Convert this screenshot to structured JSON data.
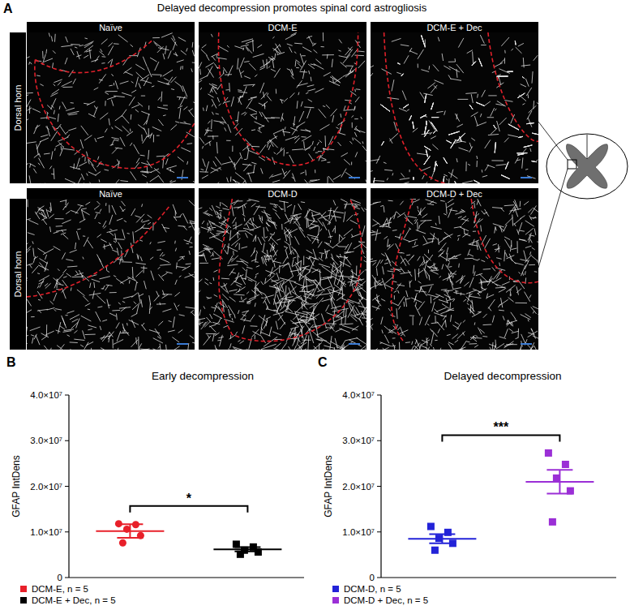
{
  "panel_labels": [
    "A",
    "B",
    "C"
  ],
  "panel_a": {
    "title": "Delayed decompression promotes spinal cord astrogliosis",
    "row_label": "Dorsal horn",
    "rows": [
      [
        "Naïve",
        "DCM-E",
        "DCM-E + Dec"
      ],
      [
        "Naïve",
        "DCM-D",
        "DCM-D + Dec"
      ]
    ]
  },
  "chart_data": [
    {
      "type": "dot",
      "title": "Early decompression",
      "y_label": "GFAP IntDens",
      "ylim": [
        0,
        40000000
      ],
      "yticks": [
        0,
        {
          "value": 10000000,
          "label": "1.0×10⁷"
        },
        {
          "value": 20000000,
          "label": "2.0×10⁷"
        },
        {
          "value": 30000000,
          "label": "3.0×10⁷"
        },
        {
          "value": 40000000,
          "label": "4.0×10⁷"
        }
      ],
      "grid": false,
      "legend": "bottom",
      "tick_labels": "y",
      "series": [
        {
          "name": "DCM-E, n = 5",
          "color": "#e8202a",
          "marker": "circle",
          "values": [
            11800000,
            11600000,
            10600000,
            9200000,
            7600000
          ],
          "mean": 10200000,
          "error": 1500000
        },
        {
          "name": "DCM-E + Dec, n = 5",
          "color": "#000000",
          "marker": "square",
          "values": [
            7300000,
            6700000,
            6000000,
            5600000,
            5100000
          ],
          "mean": 6200000,
          "error": 450000
        }
      ],
      "annotations": [
        {
          "text": "*"
        }
      ]
    },
    {
      "type": "dot",
      "title": "Delayed decompression",
      "y_label": "GFAP IntDens",
      "ylim": [
        0,
        40000000
      ],
      "yticks": [
        0,
        {
          "value": 10000000,
          "label": "1.0×10⁷"
        },
        {
          "value": 20000000,
          "label": "2.0×10⁷"
        },
        {
          "value": 30000000,
          "label": "3.0×10⁷"
        },
        {
          "value": 40000000,
          "label": "4.0×10⁷"
        }
      ],
      "grid": false,
      "legend": "bottom",
      "tick_labels": "y",
      "series": [
        {
          "name": "DCM-D, n = 5",
          "color": "#2323d8",
          "marker": "square",
          "values": [
            11200000,
            9900000,
            8600000,
            7500000,
            6000000
          ],
          "mean": 8500000,
          "error": 1000000
        },
        {
          "name": "DCM-D + Dec, n = 5",
          "color": "#9b2fd6",
          "marker": "square",
          "values": [
            27300000,
            24800000,
            21800000,
            19000000,
            12200000
          ],
          "mean": 21000000,
          "error": 2600000
        }
      ],
      "annotations": [
        {
          "text": "***"
        }
      ]
    }
  ]
}
